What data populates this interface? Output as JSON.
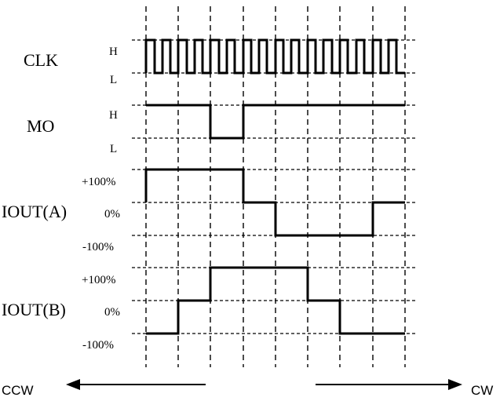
{
  "signals": [
    {
      "id": "clk",
      "name": "CLK",
      "levels": [
        {
          "id": "h",
          "label": "H"
        },
        {
          "id": "l",
          "label": "L"
        }
      ]
    },
    {
      "id": "mo",
      "name": "MO",
      "levels": [
        {
          "id": "h",
          "label": "H"
        },
        {
          "id": "l",
          "label": "L"
        }
      ]
    },
    {
      "id": "iouta",
      "name": "IOUT(A)",
      "levels": [
        {
          "id": "pos",
          "label": "+100%"
        },
        {
          "id": "zero",
          "label": "0%"
        },
        {
          "id": "neg",
          "label": "-100%"
        }
      ]
    },
    {
      "id": "ioutb",
      "name": "IOUT(B)",
      "levels": [
        {
          "id": "pos",
          "label": "+100%"
        },
        {
          "id": "zero",
          "label": "0%"
        },
        {
          "id": "neg",
          "label": "-100%"
        }
      ]
    }
  ],
  "directions": {
    "left": "CCW",
    "right": "CW"
  }
}
